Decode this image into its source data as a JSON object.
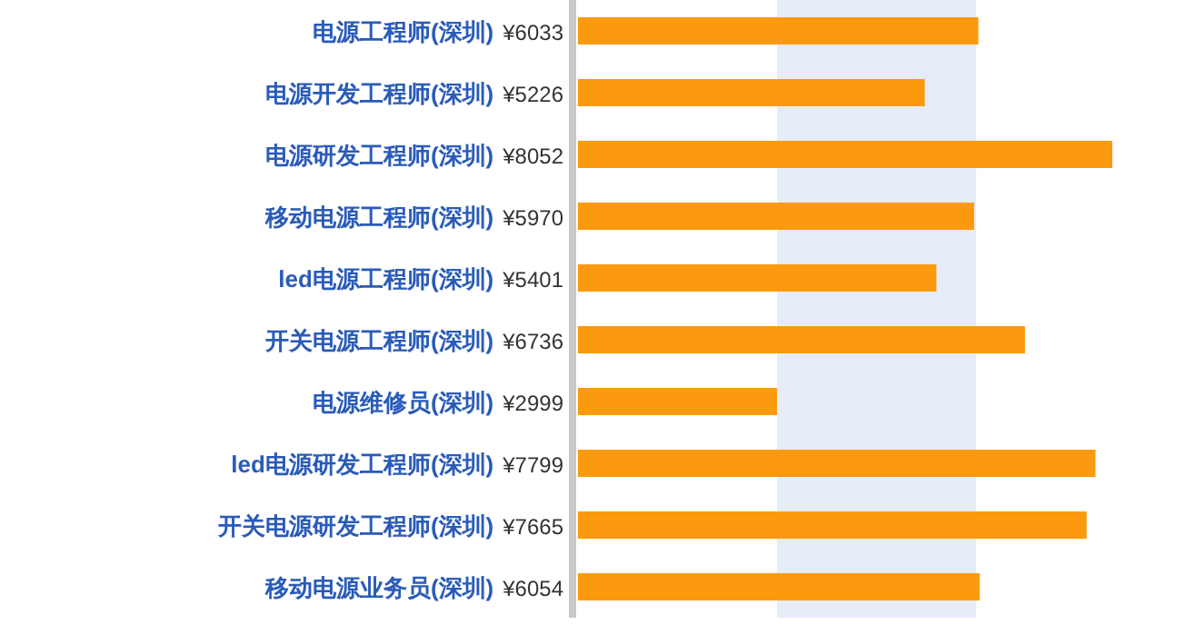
{
  "chart_data": {
    "type": "bar",
    "orientation": "horizontal",
    "categories": [
      "电源工程师(深圳)",
      "电源开发工程师(深圳)",
      "电源研发工程师(深圳)",
      "移动电源工程师(深圳)",
      "led电源工程师(深圳)",
      "开关电源工程师(深圳)",
      "电源维修员(深圳)",
      "led电源研发工程师(深圳)",
      "开关电源研发工程师(深圳)",
      "移动电源业务员(深圳)"
    ],
    "values": [
      6033,
      5226,
      8052,
      5970,
      5401,
      6736,
      2999,
      7799,
      7665,
      6054
    ],
    "value_labels": [
      "¥6033",
      "¥5226",
      "¥8052",
      "¥5970",
      "¥5401",
      "¥6736",
      "¥2999",
      "¥7799",
      "¥7665",
      "¥6054"
    ],
    "color": "#fb9a0e",
    "bands": [
      {
        "axis": "x",
        "from": 3000,
        "to": 6000,
        "color": "#e6ecf8"
      }
    ]
  }
}
